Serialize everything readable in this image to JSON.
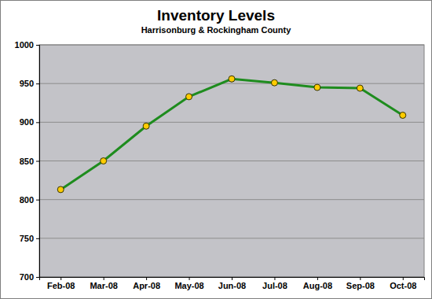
{
  "chart_data": {
    "type": "line",
    "title": "Inventory Levels",
    "subtitle": "Harrisonburg & Rockingham County",
    "categories": [
      "Feb-08",
      "Mar-08",
      "Apr-08",
      "May-08",
      "Jun-08",
      "Jul-08",
      "Aug-08",
      "Sep-08",
      "Oct-08"
    ],
    "values": [
      813,
      850,
      895,
      933,
      956,
      951,
      945,
      944,
      909
    ],
    "color": "#1e8c1e",
    "marker": "circle",
    "ylim": [
      700,
      1000
    ],
    "yticks": [
      700,
      750,
      800,
      850,
      900,
      950,
      1000
    ],
    "grid": true
  }
}
